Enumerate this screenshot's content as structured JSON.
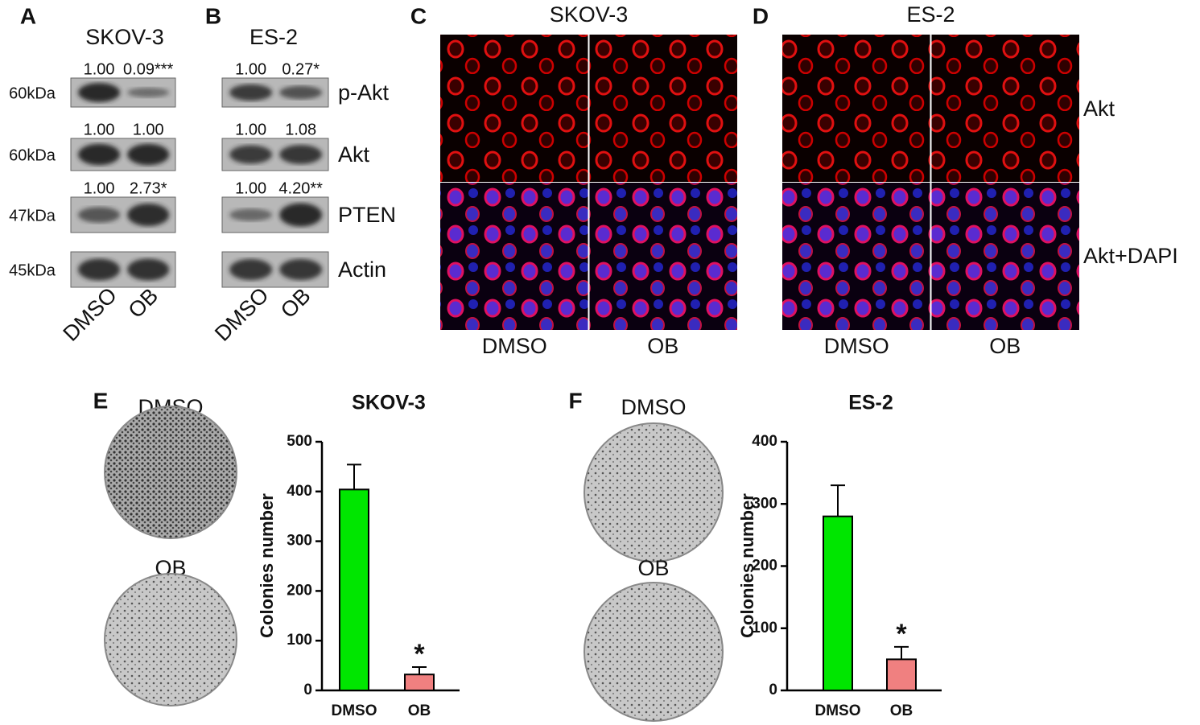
{
  "panels": {
    "A": {
      "label": "A",
      "title": "SKOV-3",
      "ratios": [
        [
          "1.00",
          "0.09***"
        ],
        [
          "1.00",
          "1.00"
        ],
        [
          "1.00",
          "2.73*"
        ]
      ],
      "markers": [
        "60kDa",
        "60kDa",
        "47kDa",
        "45kDa"
      ],
      "lanes": [
        "DMSO",
        "OB"
      ]
    },
    "B": {
      "label": "B",
      "title": "ES-2",
      "ratios": [
        [
          "1.00",
          "0.27*"
        ],
        [
          "1.00",
          "1.08"
        ],
        [
          "1.00",
          "4.20**"
        ]
      ],
      "proteins": [
        "p-Akt",
        "Akt",
        "PTEN",
        "Actin"
      ],
      "lanes": [
        "DMSO",
        "OB"
      ]
    },
    "C": {
      "label": "C",
      "title": "SKOV-3",
      "columns": [
        "DMSO",
        "OB"
      ]
    },
    "D": {
      "label": "D",
      "title": "ES-2",
      "columns": [
        "DMSO",
        "OB"
      ],
      "rows": [
        "Akt",
        "Akt+DAPI"
      ]
    },
    "E": {
      "label": "E",
      "plates": [
        "DMSO",
        "OB"
      ]
    },
    "F": {
      "label": "F",
      "plates": [
        "DMSO",
        "OB"
      ]
    }
  },
  "chart_data": [
    {
      "type": "bar",
      "title": "SKOV-3",
      "y_label": "Colonies number",
      "categories": [
        "DMSO",
        "OB"
      ],
      "values": [
        404,
        32
      ],
      "errors": [
        50,
        15
      ],
      "colors": [
        "#00e600",
        "#f08080"
      ],
      "ylim": [
        0,
        500
      ],
      "yticks": [
        0,
        100,
        200,
        300,
        400,
        500
      ],
      "annotation": "*"
    },
    {
      "type": "bar",
      "title": "ES-2",
      "y_label": "Colonies number",
      "categories": [
        "DMSO",
        "OB"
      ],
      "values": [
        280,
        50
      ],
      "errors": [
        50,
        20
      ],
      "colors": [
        "#00e600",
        "#f08080"
      ],
      "ylim": [
        0,
        400
      ],
      "yticks": [
        0,
        100,
        200,
        300,
        400
      ],
      "annotation": "*"
    }
  ]
}
